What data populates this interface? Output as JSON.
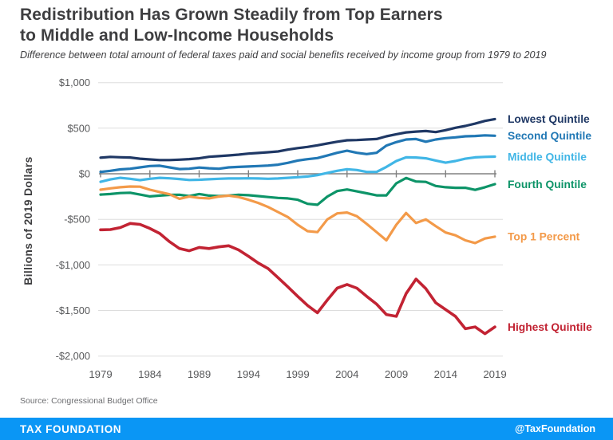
{
  "header": {
    "title_line1": "Redistribution Has Grown Steadily from Top Earners",
    "title_line2": "to Middle and Low-Income Households",
    "subtitle": "Difference between total amount of federal taxes paid and social benefits received by income group from 1979 to 2019"
  },
  "chart_data": {
    "type": "line",
    "title": "Redistribution Has Grown Steadily from Top Earners to Middle and Low-Income Households",
    "subtitle": "Difference between total amount of federal taxes paid and social benefits received by income group from 1979 to 2019",
    "xlabel": "",
    "ylabel": "Billions of 2019 Dollars",
    "ylim": [
      -2000,
      1000
    ],
    "grid": true,
    "legend_position": "right-end-labels",
    "grid_color": "#dddddd",
    "zero_axis_color": "#808080",
    "tick_label_color": "#58595b",
    "x": [
      1979,
      1980,
      1981,
      1982,
      1983,
      1984,
      1985,
      1986,
      1987,
      1988,
      1989,
      1990,
      1991,
      1992,
      1993,
      1994,
      1995,
      1996,
      1997,
      1998,
      1999,
      2000,
      2001,
      2002,
      2003,
      2004,
      2005,
      2006,
      2007,
      2008,
      2009,
      2010,
      2011,
      2012,
      2013,
      2014,
      2015,
      2016,
      2017,
      2018,
      2019
    ],
    "x_tick_labels": [
      1979,
      1984,
      1989,
      1994,
      1999,
      2004,
      2009,
      2014,
      2019
    ],
    "y_ticks": [
      {
        "value": 1000,
        "label": "$1,000"
      },
      {
        "value": 500,
        "label": "$500"
      },
      {
        "value": 0,
        "label": "$0"
      },
      {
        "value": -500,
        "label": "-$500"
      },
      {
        "value": -1000,
        "label": "-$1,000"
      },
      {
        "value": -1500,
        "label": "-$1,500"
      },
      {
        "value": -2000,
        "label": "-$2,000"
      }
    ],
    "series": [
      {
        "name": "Lowest Quintile",
        "color": "#1f3865",
        "values": [
          177,
          185,
          181,
          178,
          165,
          157,
          150,
          150,
          155,
          161,
          170,
          186,
          193,
          201,
          210,
          221,
          228,
          236,
          245,
          265,
          282,
          295,
          312,
          332,
          352,
          367,
          370,
          376,
          381,
          411,
          434,
          454,
          463,
          469,
          457,
          478,
          505,
          525,
          550,
          580,
          600
        ]
      },
      {
        "name": "Second Quintile",
        "color": "#2178b5",
        "values": [
          20,
          32,
          48,
          55,
          70,
          85,
          88,
          70,
          52,
          55,
          68,
          60,
          55,
          70,
          75,
          80,
          85,
          90,
          100,
          120,
          145,
          160,
          172,
          200,
          230,
          253,
          230,
          216,
          230,
          310,
          347,
          376,
          381,
          352,
          376,
          391,
          400,
          411,
          415,
          422,
          417
        ]
      },
      {
        "name": "Middle Quintile",
        "color": "#41b6e6",
        "values": [
          -88,
          -62,
          -45,
          -55,
          -70,
          -55,
          -45,
          -50,
          -58,
          -68,
          -66,
          -60,
          -55,
          -52,
          -52,
          -50,
          -52,
          -55,
          -52,
          -45,
          -38,
          -30,
          -15,
          10,
          32,
          50,
          41,
          20,
          20,
          75,
          140,
          180,
          178,
          170,
          145,
          122,
          140,
          165,
          180,
          185,
          188
        ]
      },
      {
        "name": "Fourth Quintile",
        "color": "#0d9468",
        "values": [
          -228,
          -222,
          -212,
          -208,
          -228,
          -248,
          -240,
          -232,
          -230,
          -245,
          -222,
          -240,
          -245,
          -240,
          -230,
          -235,
          -245,
          -255,
          -265,
          -270,
          -285,
          -330,
          -340,
          -250,
          -190,
          -172,
          -193,
          -214,
          -237,
          -237,
          -105,
          -46,
          -85,
          -89,
          -134,
          -148,
          -154,
          -154,
          -177,
          -148,
          -114
        ]
      },
      {
        "name": "Top 1 Percent",
        "color": "#f39a49",
        "values": [
          -175,
          -160,
          -148,
          -140,
          -142,
          -175,
          -200,
          -225,
          -275,
          -250,
          -265,
          -270,
          -250,
          -240,
          -255,
          -285,
          -320,
          -365,
          -420,
          -475,
          -560,
          -630,
          -640,
          -500,
          -435,
          -425,
          -465,
          -550,
          -640,
          -730,
          -560,
          -430,
          -540,
          -500,
          -575,
          -645,
          -675,
          -730,
          -760,
          -710,
          -690
        ]
      },
      {
        "name": "Highest Quintile",
        "color": "#c22333",
        "values": [
          -615,
          -612,
          -590,
          -545,
          -555,
          -600,
          -655,
          -745,
          -820,
          -845,
          -808,
          -820,
          -802,
          -790,
          -835,
          -905,
          -980,
          -1040,
          -1140,
          -1240,
          -1345,
          -1445,
          -1525,
          -1385,
          -1255,
          -1215,
          -1255,
          -1345,
          -1430,
          -1545,
          -1565,
          -1315,
          -1155,
          -1260,
          -1415,
          -1490,
          -1565,
          -1700,
          -1680,
          -1755,
          -1680
        ]
      }
    ]
  },
  "source": {
    "text": "Source: Congressional Budget Office"
  },
  "footer": {
    "brand": "TAX FOUNDATION",
    "handle": "@TaxFoundation",
    "bg_color": "#0a96f5"
  }
}
